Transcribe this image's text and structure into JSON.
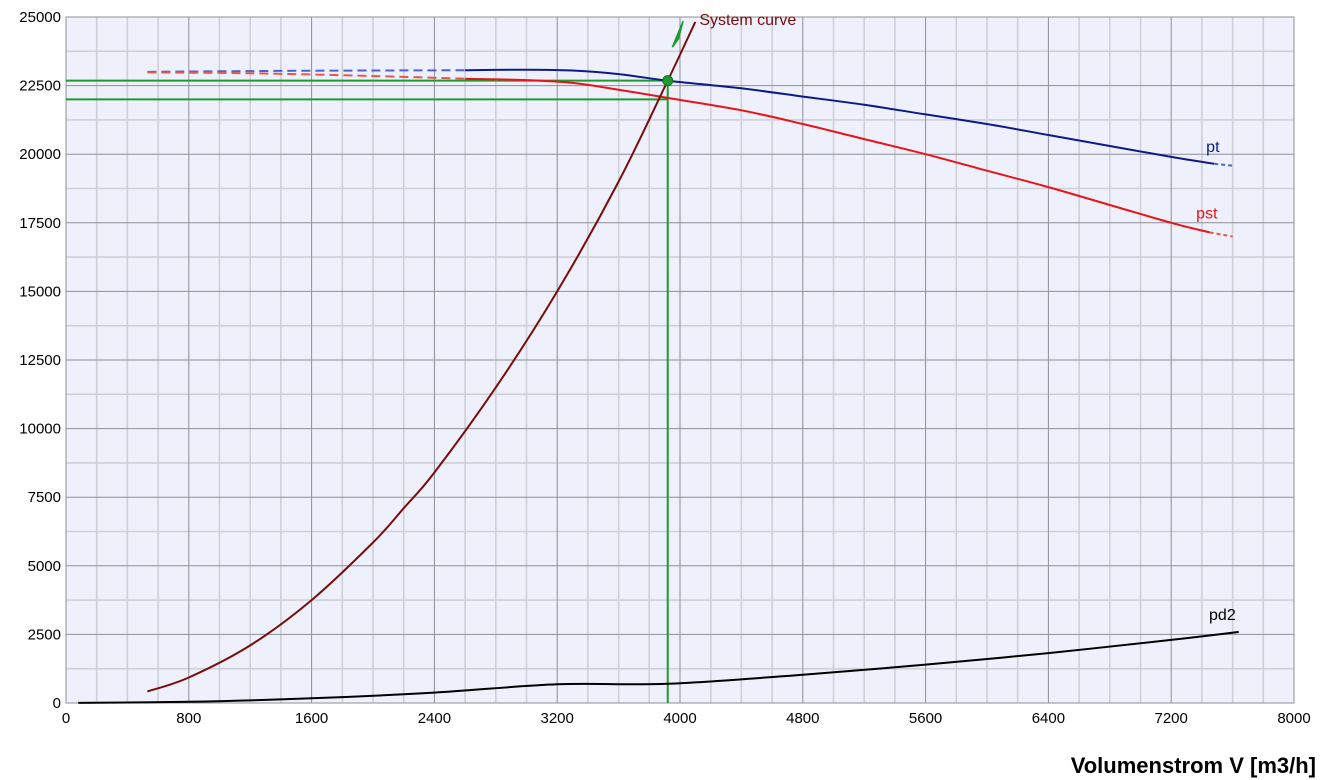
{
  "chart_data": {
    "type": "line",
    "title": "",
    "xlabel": "Volumenstrom V [m3/h]",
    "ylabel": "",
    "xlim": [
      0,
      8000
    ],
    "ylim": [
      0,
      25000
    ],
    "x_major_ticks": [
      0,
      800,
      1600,
      2400,
      3200,
      4000,
      4800,
      5600,
      6400,
      7200,
      8000
    ],
    "x_tick_labels": [
      "0",
      "800",
      "1600",
      "2400",
      "3200",
      "4000",
      "4800",
      "5600",
      "6400",
      "7200",
      "8000"
    ],
    "y_major_ticks": [
      0,
      2500,
      5000,
      7500,
      10000,
      12500,
      15000,
      17500,
      20000,
      22500,
      25000
    ],
    "y_tick_labels": [
      "0",
      "2500",
      "5000",
      "7500",
      "10000",
      "12500",
      "15000",
      "17500",
      "20000",
      "22500",
      "25000"
    ],
    "grid": true,
    "background_color": "#eef0fb",
    "series": [
      {
        "name": "pt",
        "color": "#0d1a8a",
        "dashed_segment": [
          [
            530,
            23000
          ],
          [
            1200,
            23030
          ],
          [
            2000,
            23050
          ],
          [
            2600,
            23060
          ]
        ],
        "points": [
          [
            2600,
            23060
          ],
          [
            3000,
            23080
          ],
          [
            3300,
            23050
          ],
          [
            3600,
            22920
          ],
          [
            3920,
            22680
          ],
          [
            4400,
            22400
          ],
          [
            4800,
            22100
          ],
          [
            5200,
            21800
          ],
          [
            5600,
            21450
          ],
          [
            6000,
            21100
          ],
          [
            6400,
            20700
          ],
          [
            6800,
            20300
          ],
          [
            7200,
            19900
          ],
          [
            7480,
            19650
          ]
        ],
        "dashed_tail": [
          [
            7480,
            19650
          ],
          [
            7600,
            19580
          ]
        ]
      },
      {
        "name": "pst",
        "color": "#e8141a",
        "dashed_segment": [
          [
            530,
            22980
          ],
          [
            1200,
            22950
          ],
          [
            2000,
            22850
          ],
          [
            2600,
            22750
          ]
        ],
        "points": [
          [
            2600,
            22750
          ],
          [
            3000,
            22700
          ],
          [
            3300,
            22600
          ],
          [
            3600,
            22350
          ],
          [
            3920,
            22050
          ],
          [
            4400,
            21600
          ],
          [
            4800,
            21100
          ],
          [
            5200,
            20550
          ],
          [
            5600,
            20000
          ],
          [
            6000,
            19400
          ],
          [
            6400,
            18800
          ],
          [
            6800,
            18150
          ],
          [
            7200,
            17500
          ],
          [
            7450,
            17150
          ]
        ],
        "dashed_tail": [
          [
            7450,
            17150
          ],
          [
            7600,
            17000
          ]
        ]
      },
      {
        "name": "pd2",
        "color": "#000000",
        "points": [
          [
            80,
            5
          ],
          [
            800,
            45
          ],
          [
            1600,
            170
          ],
          [
            2400,
            380
          ],
          [
            3200,
            680
          ],
          [
            3920,
            700
          ],
          [
            4800,
            1030
          ],
          [
            5600,
            1400
          ],
          [
            6400,
            1820
          ],
          [
            7200,
            2300
          ],
          [
            7640,
            2590
          ]
        ]
      },
      {
        "name": "System curve",
        "color": "#7a0c0c",
        "points": [
          [
            530,
            420
          ],
          [
            800,
            930
          ],
          [
            1200,
            2100
          ],
          [
            1600,
            3750
          ],
          [
            2000,
            5850
          ],
          [
            2200,
            7100
          ],
          [
            2400,
            8400
          ],
          [
            2800,
            11500
          ],
          [
            3200,
            15000
          ],
          [
            3600,
            19000
          ],
          [
            3920,
            22680
          ],
          [
            4100,
            24820
          ]
        ]
      }
    ],
    "operating_point": {
      "x": 3920,
      "y": 22680,
      "color": "#1e9a2e"
    },
    "reference_lines": {
      "color": "#1e9a2e",
      "vertical_x": 3920,
      "horizontal_y_values": [
        22680,
        22000
      ]
    }
  }
}
